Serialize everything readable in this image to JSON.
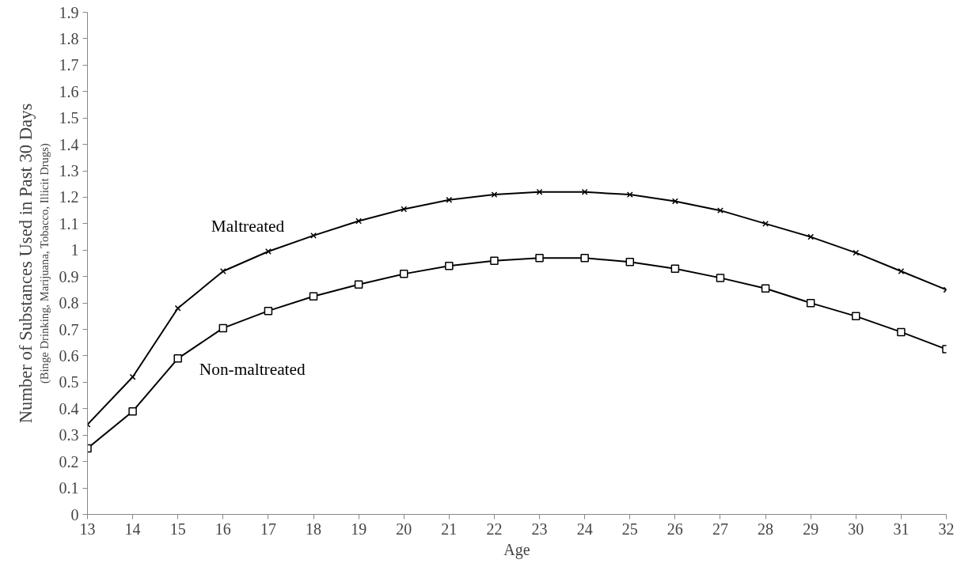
{
  "chart_data": {
    "type": "line",
    "xlabel": "Age",
    "ylabel": "Number of Substances Used in Past 30 Days",
    "subtitle": "(Binge Drinking, Marijuana, Tobacco, Illicit Drugs)",
    "x": [
      13,
      14,
      15,
      16,
      17,
      18,
      19,
      20,
      21,
      22,
      23,
      24,
      25,
      26,
      27,
      28,
      29,
      30,
      31,
      32
    ],
    "series": [
      {
        "name": "Maltreated",
        "color": "#000000",
        "marker": "cross",
        "values": [
          0.34,
          0.52,
          0.78,
          0.92,
          0.995,
          1.055,
          1.11,
          1.155,
          1.19,
          1.21,
          1.22,
          1.22,
          1.21,
          1.185,
          1.15,
          1.1,
          1.05,
          0.99,
          0.92,
          0.85
        ]
      },
      {
        "name": "Non-maltreated",
        "color": "#000000",
        "marker": "square",
        "values": [
          0.25,
          0.39,
          0.59,
          0.705,
          0.77,
          0.825,
          0.87,
          0.91,
          0.94,
          0.96,
          0.97,
          0.97,
          0.955,
          0.93,
          0.895,
          0.855,
          0.8,
          0.75,
          0.69,
          0.625
        ]
      }
    ],
    "xlim": [
      13,
      32
    ],
    "xticks": [
      13,
      14,
      15,
      16,
      17,
      18,
      19,
      20,
      21,
      22,
      23,
      24,
      25,
      26,
      27,
      28,
      29,
      30,
      31,
      32
    ],
    "ylim": [
      0,
      1.9
    ],
    "yticks": [
      0,
      0.1,
      0.2,
      0.3,
      0.4,
      0.5,
      0.6,
      0.7,
      0.8,
      0.9,
      1,
      1.1,
      1.2,
      1.3,
      1.4,
      1.5,
      1.6,
      1.7,
      1.8,
      1.9
    ],
    "grid": false,
    "legend": false,
    "line_style": "solid"
  }
}
